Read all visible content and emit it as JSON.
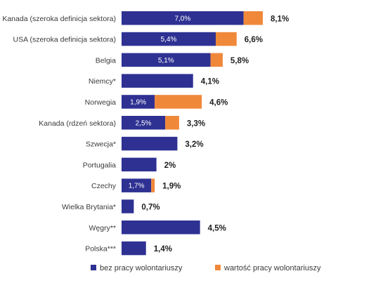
{
  "chart_data": {
    "type": "bar",
    "orientation": "horizontal",
    "stacked": true,
    "categories": [
      "Kanada (szeroka definicja sektora)",
      "USA (szeroka definicja sektora)",
      "Belgia",
      "Niemcy*",
      "Norwegia",
      "Kanada (rdzeń sektora)",
      "Szwecja*",
      "Portugalia",
      "Czechy",
      "Wielka Brytania*",
      "Węgry**",
      "Polska***"
    ],
    "series": [
      {
        "name": "bez pracy wolontariuszy",
        "color": "#2e3192",
        "values": [
          7.0,
          5.4,
          5.1,
          4.1,
          1.9,
          2.5,
          3.2,
          2.0,
          1.7,
          0.7,
          4.5,
          1.4
        ],
        "labels": [
          "7,0%",
          "5,4%",
          "5,1%",
          "",
          "1,9%",
          "2,5%",
          "",
          "",
          "1,7%",
          "",
          "",
          ""
        ]
      },
      {
        "name": "wartość pracy wolontariuszy",
        "color": "#f0883a",
        "values": [
          1.1,
          1.2,
          0.7,
          0.0,
          2.7,
          0.8,
          0.0,
          0.0,
          0.2,
          0.0,
          0.0,
          0.0
        ]
      }
    ],
    "totals": [
      "8,1%",
      "6,6%",
      "5,8%",
      "4,1%",
      "4,6%",
      "3,3%",
      "3,2%",
      "2%",
      "1,9%",
      "0,7%",
      "4,5%",
      "1,4%"
    ],
    "xlim": [
      0,
      8.1
    ],
    "grid": false,
    "legend_position": "bottom"
  }
}
